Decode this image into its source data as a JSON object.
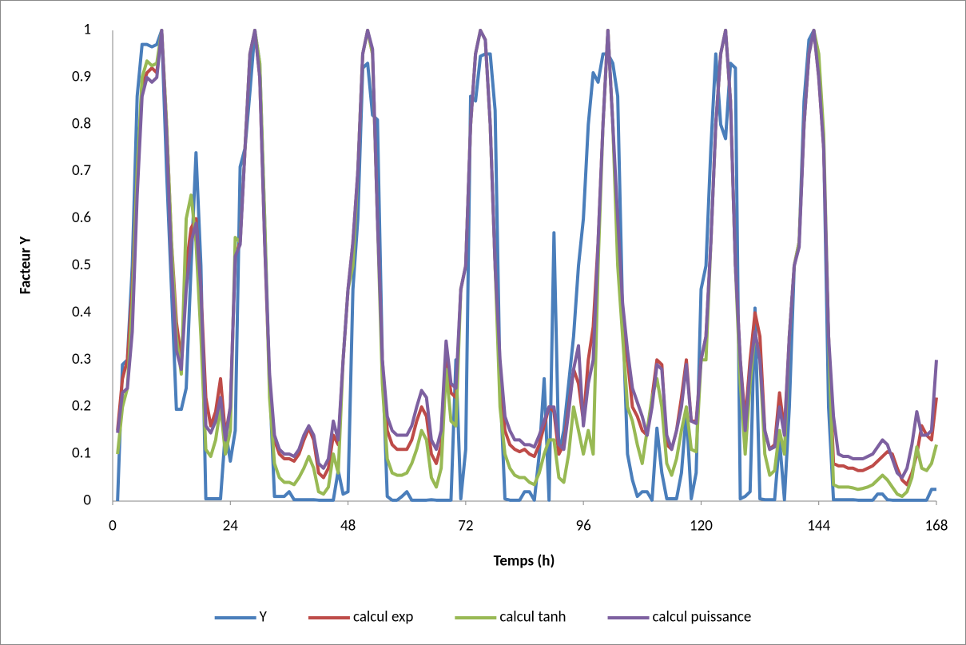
{
  "chart_data": {
    "type": "line",
    "x_label": "Temps (h)",
    "y_label": "Facteur Y",
    "xlim": [
      0,
      168
    ],
    "xticks": [
      0,
      24,
      48,
      72,
      96,
      120,
      144,
      168
    ],
    "ylim": [
      0,
      1
    ],
    "yticks": [
      0,
      0.1,
      0.2,
      0.3,
      0.4,
      0.5,
      0.6,
      0.7,
      0.8,
      0.9,
      1
    ],
    "grid": false,
    "legend": "bottom",
    "x": [
      1,
      2,
      3,
      4,
      5,
      6,
      7,
      8,
      9,
      10,
      11,
      12,
      13,
      14,
      15,
      16,
      17,
      18,
      19,
      20,
      21,
      22,
      23,
      24,
      25,
      26,
      27,
      28,
      29,
      30,
      31,
      32,
      33,
      34,
      35,
      36,
      37,
      38,
      39,
      40,
      41,
      42,
      43,
      44,
      45,
      46,
      47,
      48,
      49,
      50,
      51,
      52,
      53,
      54,
      55,
      56,
      57,
      58,
      59,
      60,
      61,
      62,
      63,
      64,
      65,
      66,
      67,
      68,
      69,
      70,
      71,
      72,
      73,
      74,
      75,
      76,
      77,
      78,
      79,
      80,
      81,
      82,
      83,
      84,
      85,
      86,
      87,
      88,
      89,
      90,
      91,
      92,
      93,
      94,
      95,
      96,
      97,
      98,
      99,
      100,
      101,
      102,
      103,
      104,
      105,
      106,
      107,
      108,
      109,
      110,
      111,
      112,
      113,
      114,
      115,
      116,
      117,
      118,
      119,
      120,
      121,
      122,
      123,
      124,
      125,
      126,
      127,
      128,
      129,
      130,
      131,
      132,
      133,
      134,
      135,
      136,
      137,
      138,
      139,
      140,
      141,
      142,
      143,
      144,
      145,
      146,
      147,
      148,
      149,
      150,
      151,
      152,
      153,
      154,
      155,
      156,
      157,
      158,
      159,
      160,
      161,
      162,
      163,
      164,
      165,
      166,
      167,
      168
    ],
    "series": [
      {
        "name": "Y",
        "color": "#4a7ebb",
        "values": [
          0,
          0.29,
          0.3,
          0.5,
          0.86,
          0.97,
          0.97,
          0.965,
          0.97,
          1,
          0.7,
          0.45,
          0.195,
          0.195,
          0.24,
          0.5,
          0.74,
          0.5,
          0.005,
          0.005,
          0.005,
          0.005,
          0.15,
          0.085,
          0.15,
          0.71,
          0.75,
          0.87,
          1,
          0.93,
          0.6,
          0.25,
          0.01,
          0.01,
          0.01,
          0.02,
          0.003,
          0.003,
          0.003,
          0.003,
          0.003,
          0.002,
          0.002,
          0.002,
          0.002,
          0.065,
          0.015,
          0.02,
          0.45,
          0.6,
          0.92,
          0.93,
          0.82,
          0.81,
          0.3,
          0.01,
          0.002,
          0.002,
          0.01,
          0.02,
          0.002,
          0.002,
          0.002,
          0.002,
          0.003,
          0.002,
          0.002,
          0.002,
          0.002,
          0.3,
          0.005,
          0.11,
          0.86,
          0.85,
          0.945,
          0.95,
          0.95,
          0.83,
          0.25,
          0.005,
          0.002,
          0.002,
          0.002,
          0.02,
          0.02,
          0.002,
          0.1,
          0.26,
          0.002,
          0.57,
          0.1,
          0.15,
          0.25,
          0.35,
          0.5,
          0.6,
          0.8,
          0.91,
          0.89,
          0.95,
          0.95,
          0.93,
          0.86,
          0.4,
          0.1,
          0.045,
          0.01,
          0.02,
          0.02,
          0.002,
          0.155,
          0.06,
          0.005,
          0.005,
          0.005,
          0.06,
          0.19,
          0.005,
          0.06,
          0.45,
          0.5,
          0.75,
          0.95,
          0.8,
          0.77,
          0.93,
          0.92,
          0.005,
          0.01,
          0.02,
          0.41,
          0.005,
          0.003,
          0.003,
          0.003,
          0.13,
          0.003,
          0.2,
          0.5,
          0.55,
          0.85,
          0.98,
          1,
          0.92,
          0.76,
          0.2,
          0.003,
          0.003,
          0.003,
          0.003,
          0.003,
          0.002,
          0.002,
          0.002,
          0.002,
          0.015,
          0.015,
          0.003,
          0.002,
          0.002,
          0.002,
          0.002,
          0.002,
          0.002,
          0.002,
          0.002,
          0.025,
          0.025
        ]
      },
      {
        "name": "calcul exp",
        "color": "#be4b48",
        "values": [
          0.15,
          0.26,
          0.3,
          0.45,
          0.7,
          0.88,
          0.91,
          0.92,
          0.91,
          1,
          0.8,
          0.55,
          0.38,
          0.3,
          0.5,
          0.58,
          0.6,
          0.45,
          0.22,
          0.16,
          0.19,
          0.26,
          0.14,
          0.2,
          0.52,
          0.55,
          0.75,
          0.95,
          1,
          0.9,
          0.55,
          0.25,
          0.13,
          0.1,
          0.09,
          0.09,
          0.085,
          0.1,
          0.13,
          0.155,
          0.13,
          0.06,
          0.05,
          0.07,
          0.14,
          0.12,
          0.3,
          0.45,
          0.55,
          0.7,
          0.95,
          1,
          0.95,
          0.6,
          0.3,
          0.15,
          0.12,
          0.11,
          0.11,
          0.11,
          0.13,
          0.17,
          0.2,
          0.18,
          0.1,
          0.08,
          0.12,
          0.3,
          0.23,
          0.22,
          0.45,
          0.5,
          0.8,
          0.95,
          1,
          0.98,
          0.8,
          0.5,
          0.25,
          0.15,
          0.12,
          0.11,
          0.105,
          0.11,
          0.1,
          0.095,
          0.12,
          0.16,
          0.2,
          0.19,
          0.1,
          0.12,
          0.2,
          0.28,
          0.25,
          0.17,
          0.3,
          0.37,
          0.55,
          0.8,
          1,
          0.8,
          0.55,
          0.4,
          0.3,
          0.2,
          0.18,
          0.15,
          0.14,
          0.22,
          0.3,
          0.29,
          0.12,
          0.11,
          0.15,
          0.22,
          0.3,
          0.17,
          0.17,
          0.3,
          0.35,
          0.55,
          0.8,
          0.95,
          1,
          0.85,
          0.5,
          0.3,
          0.17,
          0.3,
          0.4,
          0.35,
          0.15,
          0.11,
          0.12,
          0.23,
          0.15,
          0.35,
          0.5,
          0.55,
          0.8,
          0.95,
          1,
          0.9,
          0.75,
          0.35,
          0.08,
          0.075,
          0.075,
          0.07,
          0.07,
          0.065,
          0.065,
          0.07,
          0.075,
          0.085,
          0.095,
          0.105,
          0.1,
          0.07,
          0.045,
          0.035,
          0.06,
          0.1,
          0.16,
          0.14,
          0.13,
          0.22
        ]
      },
      {
        "name": "calcul tanh",
        "color": "#98b954",
        "values": [
          0.1,
          0.2,
          0.24,
          0.42,
          0.7,
          0.9,
          0.935,
          0.925,
          0.93,
          1,
          0.8,
          0.55,
          0.35,
          0.27,
          0.6,
          0.65,
          0.55,
          0.35,
          0.11,
          0.095,
          0.13,
          0.2,
          0.1,
          0.15,
          0.56,
          0.55,
          0.75,
          0.95,
          1,
          0.93,
          0.6,
          0.22,
          0.08,
          0.05,
          0.04,
          0.04,
          0.035,
          0.05,
          0.07,
          0.095,
          0.07,
          0.02,
          0.015,
          0.03,
          0.1,
          0.06,
          0.3,
          0.45,
          0.5,
          0.7,
          0.95,
          1,
          0.95,
          0.6,
          0.25,
          0.09,
          0.06,
          0.055,
          0.055,
          0.06,
          0.08,
          0.11,
          0.15,
          0.13,
          0.05,
          0.03,
          0.07,
          0.28,
          0.17,
          0.16,
          0.45,
          0.5,
          0.8,
          0.95,
          1,
          0.98,
          0.8,
          0.5,
          0.2,
          0.1,
          0.07,
          0.055,
          0.05,
          0.05,
          0.04,
          0.035,
          0.06,
          0.1,
          0.13,
          0.13,
          0.05,
          0.04,
          0.1,
          0.2,
          0.15,
          0.1,
          0.15,
          0.1,
          0.5,
          0.8,
          1,
          0.8,
          0.5,
          0.35,
          0.2,
          0.17,
          0.12,
          0.08,
          0.15,
          0.22,
          0.26,
          0.2,
          0.08,
          0.055,
          0.09,
          0.15,
          0.2,
          0.11,
          0.105,
          0.3,
          0.3,
          0.55,
          0.8,
          0.95,
          1,
          0.85,
          0.5,
          0.25,
          0.1,
          0.25,
          0.36,
          0.3,
          0.1,
          0.055,
          0.065,
          0.15,
          0.1,
          0.35,
          0.5,
          0.55,
          0.8,
          0.95,
          1,
          0.95,
          0.78,
          0.35,
          0.035,
          0.03,
          0.03,
          0.03,
          0.028,
          0.025,
          0.027,
          0.03,
          0.035,
          0.045,
          0.055,
          0.045,
          0.03,
          0.015,
          0.01,
          0.02,
          0.05,
          0.115,
          0.07,
          0.065,
          0.08,
          0.12
        ]
      },
      {
        "name": "calcul puissance",
        "color": "#7d60a0",
        "values": [
          0.145,
          0.23,
          0.24,
          0.36,
          0.65,
          0.86,
          0.9,
          0.89,
          0.9,
          1,
          0.78,
          0.5,
          0.32,
          0.28,
          0.45,
          0.55,
          0.59,
          0.45,
          0.16,
          0.145,
          0.17,
          0.22,
          0.13,
          0.2,
          0.52,
          0.545,
          0.75,
          0.95,
          1,
          0.9,
          0.55,
          0.27,
          0.14,
          0.11,
          0.1,
          0.1,
          0.095,
          0.11,
          0.14,
          0.16,
          0.14,
          0.08,
          0.07,
          0.09,
          0.17,
          0.13,
          0.3,
          0.45,
          0.55,
          0.7,
          0.95,
          1,
          0.96,
          0.6,
          0.3,
          0.18,
          0.15,
          0.14,
          0.14,
          0.14,
          0.16,
          0.2,
          0.235,
          0.22,
          0.13,
          0.11,
          0.15,
          0.34,
          0.25,
          0.24,
          0.45,
          0.5,
          0.8,
          0.95,
          1,
          0.98,
          0.8,
          0.5,
          0.3,
          0.18,
          0.15,
          0.13,
          0.13,
          0.12,
          0.12,
          0.115,
          0.14,
          0.17,
          0.2,
          0.2,
          0.12,
          0.11,
          0.19,
          0.28,
          0.33,
          0.16,
          0.25,
          0.3,
          0.55,
          0.8,
          1,
          0.8,
          0.6,
          0.42,
          0.32,
          0.24,
          0.21,
          0.18,
          0.14,
          0.2,
          0.29,
          0.28,
          0.14,
          0.11,
          0.15,
          0.2,
          0.29,
          0.17,
          0.165,
          0.3,
          0.35,
          0.55,
          0.8,
          0.95,
          1,
          0.85,
          0.5,
          0.3,
          0.15,
          0.28,
          0.36,
          0.3,
          0.15,
          0.11,
          0.115,
          0.2,
          0.14,
          0.35,
          0.5,
          0.54,
          0.8,
          0.95,
          1,
          0.9,
          0.75,
          0.35,
          0.18,
          0.1,
          0.095,
          0.095,
          0.09,
          0.09,
          0.09,
          0.095,
          0.1,
          0.115,
          0.13,
          0.12,
          0.09,
          0.06,
          0.05,
          0.07,
          0.12,
          0.19,
          0.14,
          0.14,
          0.15,
          0.3
        ]
      }
    ]
  }
}
